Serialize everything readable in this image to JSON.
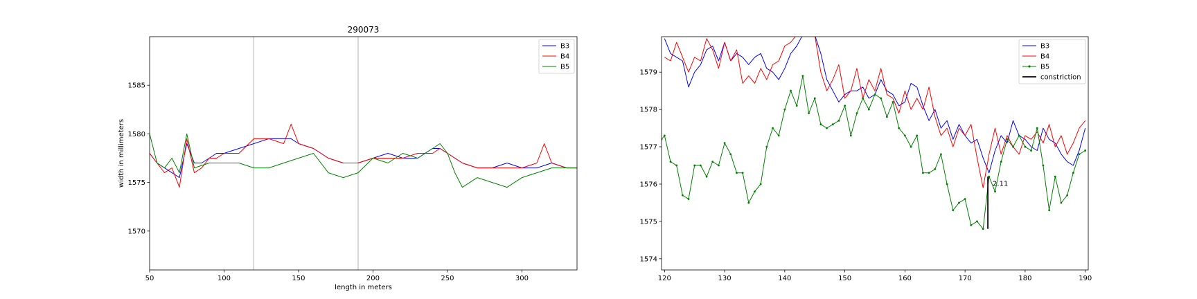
{
  "chart_data": [
    {
      "type": "line",
      "title": "290073",
      "xlabel": "length in meters",
      "ylabel": "width in millimeters",
      "xlim": [
        50,
        337
      ],
      "ylim": [
        1566,
        1590
      ],
      "xticks": [
        50,
        100,
        150,
        200,
        250,
        300
      ],
      "yticks": [
        1570,
        1575,
        1580,
        1585
      ],
      "grid": false,
      "legend": "top-right",
      "vlines": [
        120,
        190
      ],
      "series": [
        {
          "name": "B3",
          "color": "#0000ff",
          "x": [
            50,
            55,
            60,
            65,
            70,
            75,
            80,
            85,
            90,
            95,
            100,
            110,
            120,
            130,
            140,
            145,
            150,
            160,
            170,
            180,
            190,
            200,
            210,
            220,
            230,
            240,
            245,
            250,
            260,
            270,
            280,
            290,
            300,
            310,
            320,
            330,
            337
          ],
          "y": [
            1578,
            1577,
            1576.5,
            1576,
            1575.5,
            1579,
            1577,
            1577,
            1577.5,
            1578,
            1578,
            1578.5,
            1579,
            1579.5,
            1579.5,
            1579.5,
            1579,
            1578.5,
            1577.5,
            1577,
            1577,
            1577.5,
            1578,
            1577.5,
            1577.5,
            1578.5,
            1578.5,
            1578,
            1577,
            1576.5,
            1576.5,
            1577,
            1576.5,
            1576.5,
            1577,
            1576.5,
            1576.5
          ]
        },
        {
          "name": "B4",
          "color": "#ff0000",
          "x": [
            50,
            55,
            60,
            65,
            70,
            75,
            80,
            85,
            90,
            95,
            100,
            110,
            120,
            130,
            140,
            145,
            150,
            160,
            170,
            180,
            190,
            200,
            210,
            220,
            230,
            240,
            245,
            250,
            260,
            270,
            280,
            290,
            300,
            310,
            315,
            320,
            330,
            337
          ],
          "y": [
            1578,
            1577,
            1576,
            1576.5,
            1574.5,
            1579.5,
            1576,
            1576.5,
            1577.5,
            1577.5,
            1578,
            1578,
            1579.5,
            1579.5,
            1579,
            1581,
            1579,
            1578.5,
            1577.5,
            1577,
            1577,
            1577.5,
            1577.5,
            1577.5,
            1578,
            1578,
            1578.5,
            1578,
            1577,
            1576.5,
            1576.5,
            1576.5,
            1576.5,
            1577,
            1579,
            1577,
            1576.5,
            1576.5
          ]
        },
        {
          "name": "B5",
          "color": "#008000",
          "x": [
            50,
            55,
            60,
            65,
            70,
            75,
            80,
            90,
            100,
            110,
            120,
            130,
            140,
            150,
            160,
            170,
            180,
            190,
            200,
            210,
            220,
            230,
            240,
            245,
            250,
            255,
            260,
            270,
            280,
            290,
            300,
            310,
            320,
            330,
            337
          ],
          "y": [
            1580,
            1577,
            1576.5,
            1577.5,
            1576,
            1580,
            1576.5,
            1577,
            1577,
            1577,
            1576.5,
            1576.5,
            1577,
            1577.5,
            1578,
            1576,
            1575.5,
            1576,
            1577.5,
            1577,
            1578,
            1577.5,
            1578.5,
            1579,
            1578,
            1576,
            1574.5,
            1575.5,
            1575,
            1574.5,
            1575.5,
            1576,
            1576.5,
            1576.5,
            1576.5
          ]
        }
      ]
    },
    {
      "type": "line",
      "title": "",
      "xlabel": "",
      "ylabel": "",
      "xlim": [
        119.5,
        190.5
      ],
      "ylim": [
        1573.7,
        1579.95
      ],
      "xticks": [
        120,
        130,
        140,
        150,
        160,
        170,
        180,
        190
      ],
      "yticks": [
        1574,
        1575,
        1576,
        1577,
        1578,
        1579
      ],
      "grid": false,
      "legend": "top-right",
      "series": [
        {
          "name": "B3",
          "color": "#0000ff",
          "markers": false,
          "x": [
            120,
            121,
            122,
            123,
            124,
            125,
            126,
            127,
            128,
            129,
            130,
            131,
            132,
            133,
            134,
            135,
            136,
            137,
            138,
            139,
            140,
            141,
            142,
            143,
            144,
            145,
            146,
            147,
            148,
            149,
            150,
            151,
            152,
            153,
            154,
            155,
            156,
            157,
            158,
            159,
            160,
            161,
            162,
            163,
            164,
            165,
            166,
            167,
            168,
            169,
            170,
            171,
            172,
            173,
            174,
            175,
            176,
            177,
            178,
            179,
            180,
            181,
            182,
            183,
            184,
            185,
            186,
            187,
            188,
            189,
            190
          ],
          "y": [
            1579.9,
            1579.5,
            1579.4,
            1579.3,
            1578.6,
            1579,
            1579.2,
            1579.6,
            1579.7,
            1579.3,
            1579.8,
            1579.3,
            1579.5,
            1579.4,
            1579.2,
            1579.4,
            1579.5,
            1579.1,
            1579,
            1578.8,
            1579.1,
            1579.5,
            1579.7,
            1580,
            1580,
            1580,
            1579.5,
            1578.8,
            1578.5,
            1578.2,
            1578.4,
            1578.5,
            1578.5,
            1578.6,
            1578.3,
            1578.4,
            1578.8,
            1578.5,
            1578.4,
            1578.1,
            1578.2,
            1578.7,
            1578.6,
            1578.1,
            1577.7,
            1578,
            1577.5,
            1577.7,
            1577.2,
            1577.6,
            1577.3,
            1577.1,
            1577.2,
            1576.7,
            1576.3,
            1576.9,
            1577.3,
            1577.1,
            1577.7,
            1577.3,
            1577.2,
            1577.0,
            1576.9,
            1577.5,
            1577.2,
            1577.1,
            1576.8,
            1576.6,
            1576.5,
            1576.9,
            1577.5
          ]
        },
        {
          "name": "B4",
          "color": "#ff0000",
          "markers": false,
          "x": [
            120,
            121,
            122,
            123,
            124,
            125,
            126,
            127,
            128,
            129,
            130,
            131,
            132,
            133,
            134,
            135,
            136,
            137,
            138,
            139,
            140,
            141,
            142,
            143,
            144,
            145,
            146,
            147,
            148,
            149,
            150,
            151,
            152,
            153,
            154,
            155,
            156,
            157,
            158,
            159,
            160,
            161,
            162,
            163,
            164,
            165,
            166,
            167,
            168,
            169,
            170,
            171,
            172,
            173,
            174,
            175,
            176,
            177,
            178,
            179,
            180,
            181,
            182,
            183,
            184,
            185,
            186,
            187,
            188,
            189,
            190
          ],
          "y": [
            1579.4,
            1579.3,
            1579.8,
            1579.4,
            1579,
            1579.4,
            1579.3,
            1579.9,
            1579.6,
            1579.1,
            1579.8,
            1579.3,
            1579.6,
            1578.7,
            1578.9,
            1578.7,
            1579.1,
            1578.8,
            1579.2,
            1579.3,
            1579.7,
            1579.8,
            1580,
            1580,
            1580,
            1580,
            1579,
            1578.5,
            1578.8,
            1579.2,
            1578.3,
            1578.5,
            1579.1,
            1578.3,
            1578.8,
            1578.5,
            1579.1,
            1578.4,
            1578.3,
            1577.9,
            1578.5,
            1578,
            1578.3,
            1578,
            1578.6,
            1577.8,
            1577.3,
            1577.5,
            1577,
            1577.5,
            1577.3,
            1577.6,
            1576.7,
            1575.9,
            1576.8,
            1577.5,
            1576.8,
            1577.3,
            1577.0,
            1576.8,
            1577.3,
            1577.2,
            1577.4,
            1577.1,
            1577.6,
            1577,
            1577.3,
            1576.8,
            1577.1,
            1577.5,
            1577.7
          ]
        },
        {
          "name": "B5",
          "color": "#008000",
          "markers": true,
          "x": [
            119.5,
            120,
            121,
            122,
            123,
            124,
            125,
            126,
            127,
            128,
            129,
            130,
            131,
            132,
            133,
            134,
            135,
            136,
            137,
            138,
            139,
            140,
            141,
            142,
            143,
            144,
            145,
            146,
            147,
            148,
            149,
            150,
            151,
            152,
            153,
            154,
            155,
            156,
            157,
            158,
            159,
            160,
            161,
            162,
            163,
            164,
            165,
            166,
            167,
            168,
            169,
            170,
            171,
            172,
            173,
            174,
            175,
            176,
            177,
            178,
            179,
            180,
            181,
            182,
            183,
            184,
            185,
            186,
            187,
            188,
            189,
            190
          ],
          "y": [
            1577.2,
            1577.3,
            1576.6,
            1576.5,
            1575.7,
            1575.6,
            1576.5,
            1576.5,
            1576.2,
            1576.6,
            1576.5,
            1577.1,
            1576.8,
            1576.3,
            1576.3,
            1575.5,
            1575.8,
            1576,
            1577,
            1577.5,
            1577.3,
            1578,
            1578.5,
            1578.1,
            1578.9,
            1577.9,
            1578.3,
            1577.6,
            1577.5,
            1577.6,
            1577.7,
            1578.1,
            1577.3,
            1577.9,
            1578.3,
            1578.0,
            1578.4,
            1578.3,
            1577.8,
            1578.2,
            1577.5,
            1577.3,
            1577.0,
            1577.3,
            1576.3,
            1576.3,
            1576.4,
            1576.8,
            1576,
            1575.3,
            1575.5,
            1575.6,
            1574.9,
            1575.0,
            1574.8,
            1576.2,
            1575.8,
            1576.6,
            1577.2,
            1577,
            1577.3,
            1577.0,
            1576.9,
            1577.5,
            1576.5,
            1575.3,
            1576.2,
            1575.5,
            1575.7,
            1576.3,
            1576.8,
            1576.9
          ]
        },
        {
          "name": "constriction",
          "color": "#000000",
          "markers": false,
          "x": [
            173.8,
            173.8
          ],
          "y": [
            1574.8,
            1576.2
          ]
        }
      ],
      "annotations": [
        {
          "text": "2.11",
          "x": 174.6,
          "y": 1575.95
        }
      ]
    }
  ]
}
